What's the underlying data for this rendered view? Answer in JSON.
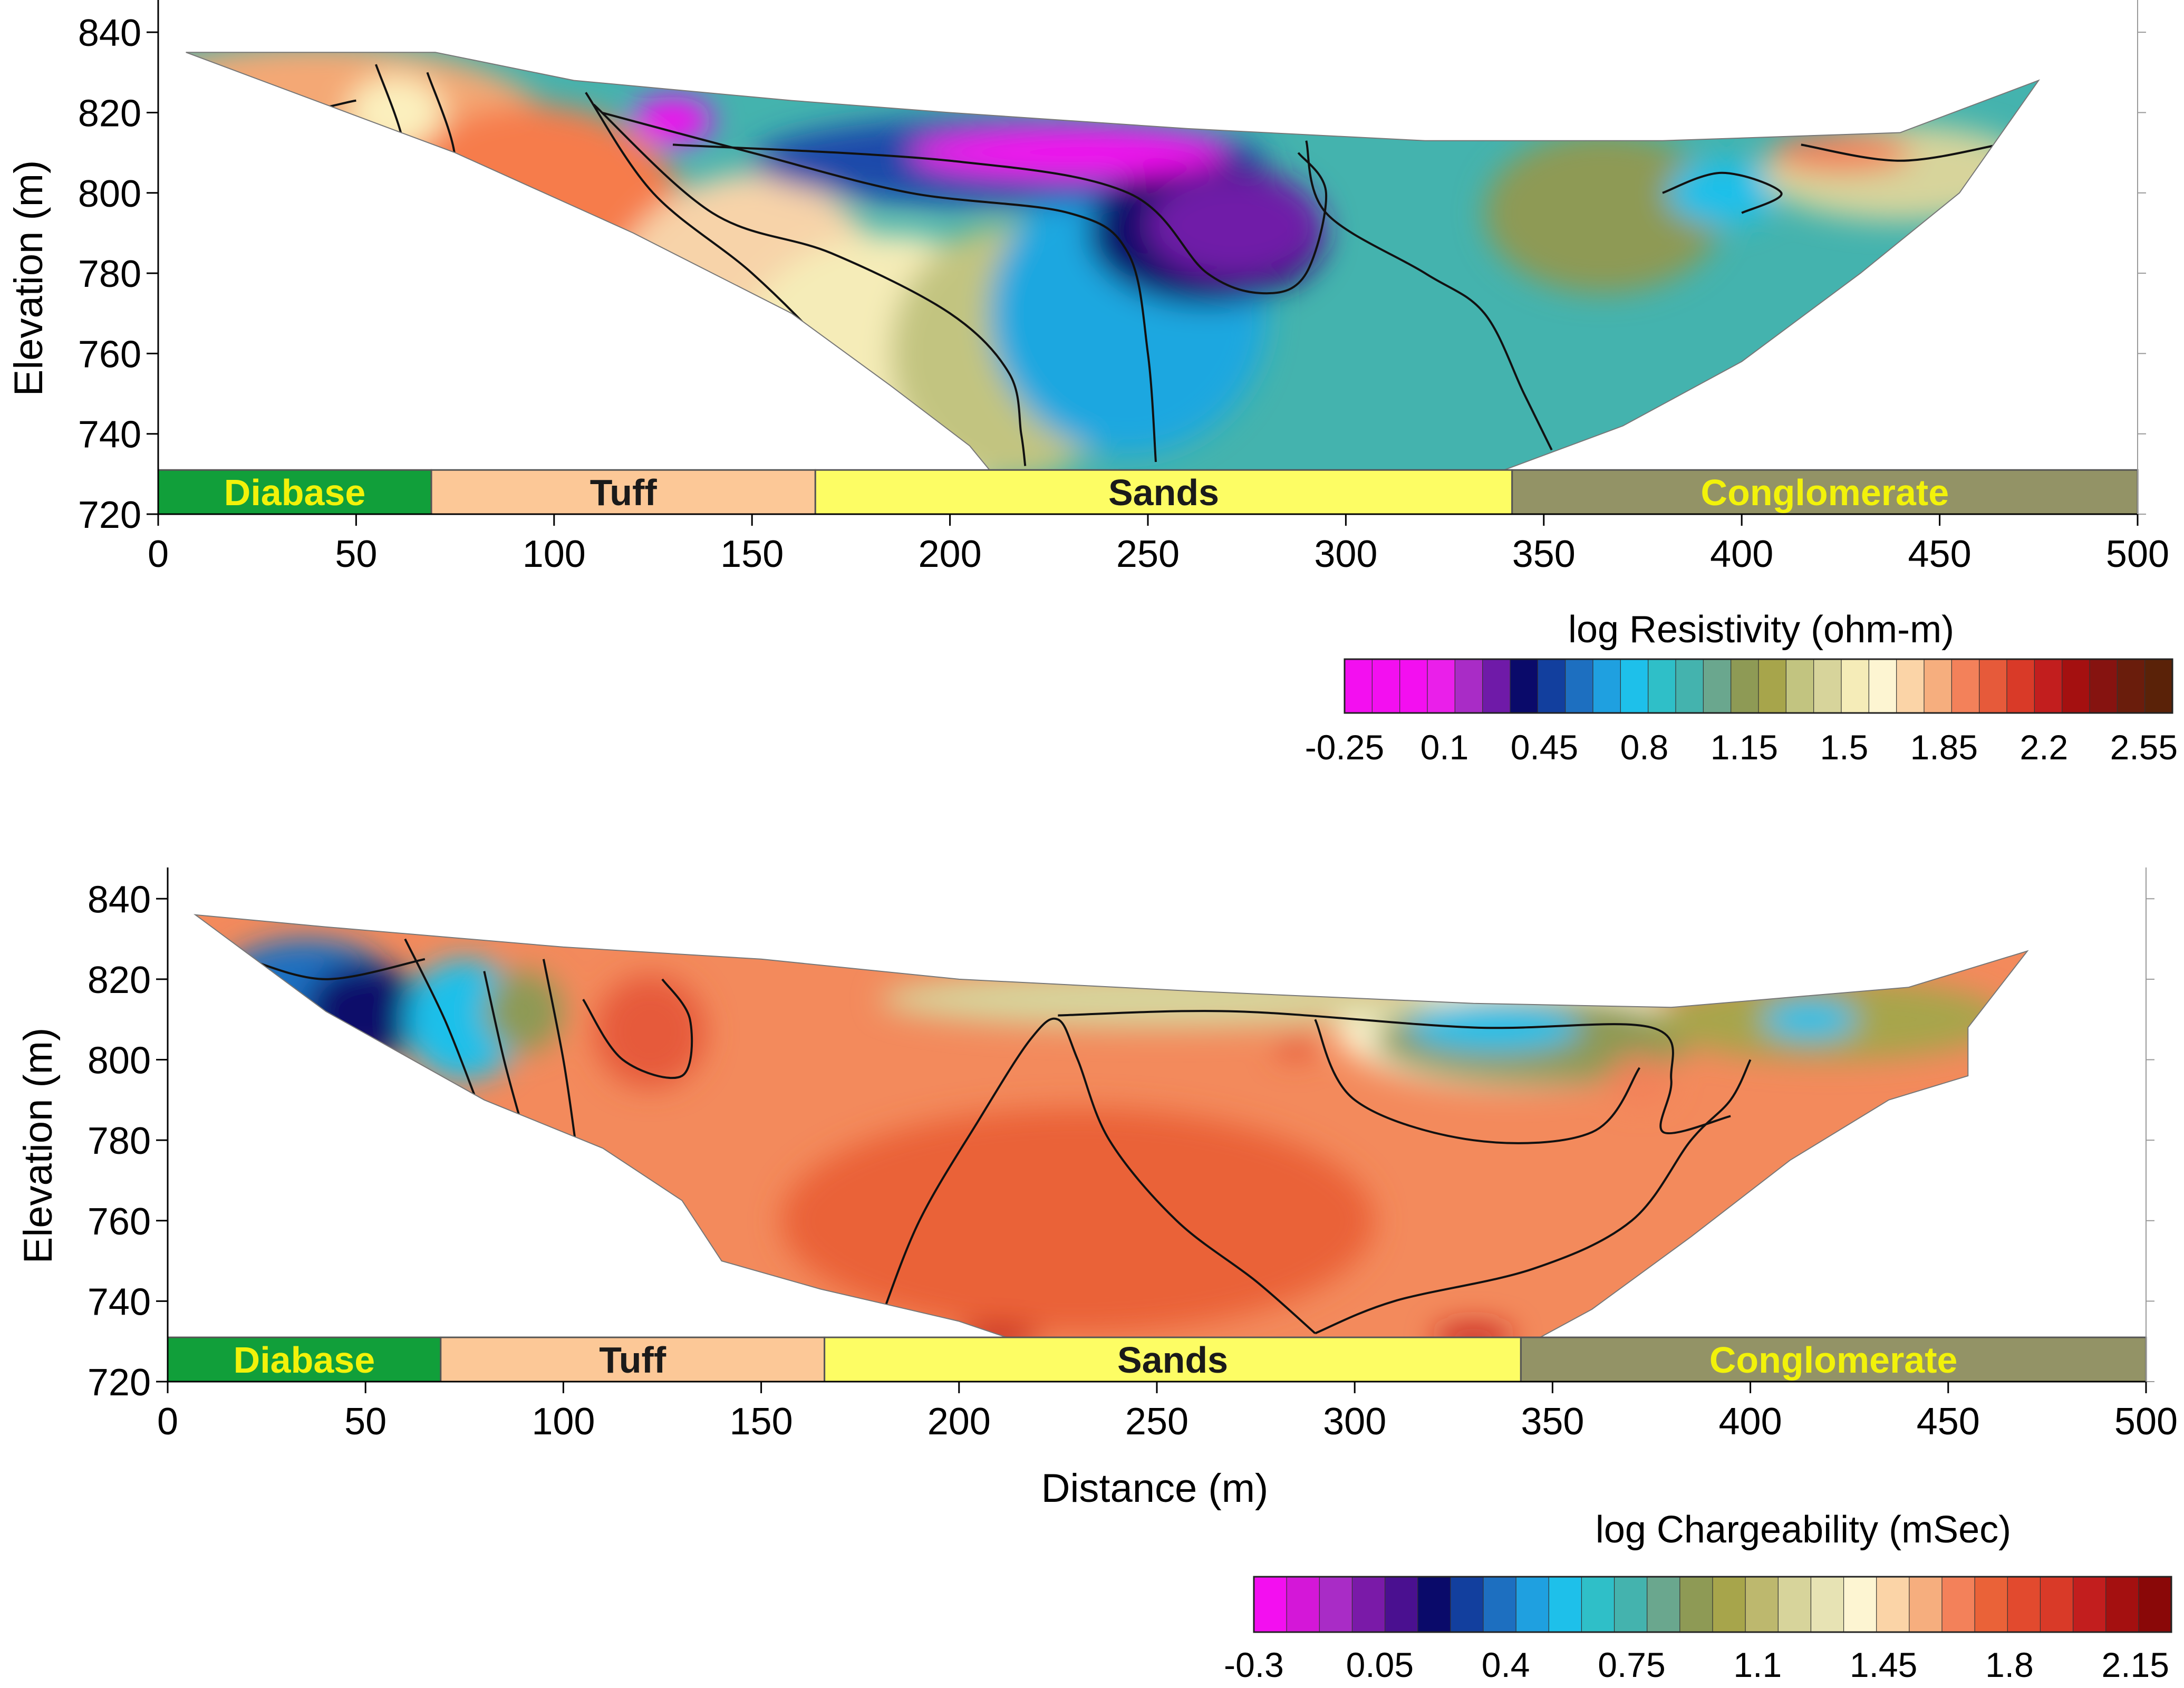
{
  "figure": {
    "x_axis_title": "Distance (m)"
  },
  "chart_data": [
    {
      "type": "heatmap",
      "id": "resistivity",
      "ylabel": "Elevation (m)",
      "xlabel": "",
      "xlim": [
        0,
        500
      ],
      "ylim": [
        720,
        850
      ],
      "x_ticks": [
        0,
        50,
        100,
        150,
        200,
        250,
        300,
        350,
        400,
        450,
        500
      ],
      "y_ticks": [
        720,
        740,
        760,
        780,
        800,
        820,
        840
      ],
      "section_top": [
        [
          7,
          835
        ],
        [
          70,
          835
        ],
        [
          105,
          828
        ],
        [
          160,
          823
        ],
        [
          200,
          820
        ],
        [
          260,
          816
        ],
        [
          320,
          813
        ],
        [
          380,
          813
        ],
        [
          440,
          815
        ],
        [
          475,
          828
        ]
      ],
      "section_bottom": [
        [
          7,
          835
        ],
        [
          75,
          810
        ],
        [
          120,
          790
        ],
        [
          160,
          770
        ],
        [
          185,
          752
        ],
        [
          205,
          737
        ],
        [
          210,
          731
        ],
        [
          340,
          731
        ],
        [
          370,
          742
        ],
        [
          400,
          758
        ],
        [
          430,
          780
        ],
        [
          455,
          800
        ],
        [
          475,
          828
        ]
      ],
      "field_bg": "#44b3ae",
      "bodies": [
        {
          "cx": 40,
          "cy": 815,
          "rx": 60,
          "ry": 22,
          "color": "#f4a875"
        },
        {
          "cx": 95,
          "cy": 790,
          "rx": 40,
          "ry": 32,
          "color": "#f67c4c"
        },
        {
          "cx": 60,
          "cy": 820,
          "rx": 12,
          "ry": 9,
          "color": "#fbf0be"
        },
        {
          "cx": 150,
          "cy": 760,
          "rx": 40,
          "ry": 45,
          "color": "#f7d3a9"
        },
        {
          "cx": 185,
          "cy": 755,
          "rx": 40,
          "ry": 35,
          "color": "#f5ecb8"
        },
        {
          "cx": 215,
          "cy": 760,
          "rx": 30,
          "ry": 32,
          "color": "#c2c480"
        },
        {
          "cx": 245,
          "cy": 770,
          "rx": 35,
          "ry": 35,
          "color": "#1fa7e0"
        },
        {
          "cx": 215,
          "cy": 808,
          "rx": 65,
          "ry": 11,
          "color": "#1f4aaa"
        },
        {
          "cx": 265,
          "cy": 790,
          "rx": 30,
          "ry": 18,
          "color": "#0a0a6a"
        },
        {
          "cx": 272,
          "cy": 792,
          "rx": 22,
          "ry": 13,
          "color": "#6f1aa8"
        },
        {
          "cx": 230,
          "cy": 810,
          "rx": 40,
          "ry": 6,
          "color": "#f30ff0"
        },
        {
          "cx": 130,
          "cy": 818,
          "rx": 10,
          "ry": 6,
          "color": "#f30ff0"
        },
        {
          "cx": 365,
          "cy": 795,
          "rx": 30,
          "ry": 20,
          "color": "#8e9a55"
        },
        {
          "cx": 395,
          "cy": 800,
          "rx": 14,
          "ry": 8,
          "color": "#1ec0ea"
        },
        {
          "cx": 440,
          "cy": 805,
          "rx": 35,
          "ry": 12,
          "color": "#d7d49b"
        },
        {
          "cx": 425,
          "cy": 810,
          "rx": 18,
          "ry": 5,
          "color": "#f3815a"
        }
      ],
      "contours": [
        [
          [
            108,
            825
          ],
          [
            125,
            800
          ],
          [
            150,
            780
          ],
          [
            170,
            760
          ],
          [
            180,
            745
          ],
          [
            192,
            732
          ]
        ],
        [
          [
            110,
            822
          ],
          [
            140,
            795
          ],
          [
            170,
            785
          ],
          [
            200,
            770
          ],
          [
            215,
            755
          ],
          [
            218,
            740
          ],
          [
            219,
            732
          ]
        ],
        [
          [
            112,
            820
          ],
          [
            150,
            810
          ],
          [
            190,
            800
          ],
          [
            230,
            795
          ],
          [
            245,
            785
          ],
          [
            250,
            760
          ],
          [
            252,
            733
          ]
        ],
        [
          [
            130,
            812
          ],
          [
            200,
            808
          ],
          [
            245,
            800
          ],
          [
            265,
            780
          ],
          [
            280,
            775
          ],
          [
            290,
            780
          ],
          [
            295,
            800
          ],
          [
            288,
            810
          ]
        ],
        [
          [
            290,
            813
          ],
          [
            295,
            795
          ],
          [
            320,
            780
          ],
          [
            335,
            770
          ],
          [
            345,
            750
          ],
          [
            352,
            736
          ]
        ],
        [
          [
            55,
            832
          ],
          [
            62,
            812
          ],
          [
            60,
            800
          ],
          [
            68,
            795
          ],
          [
            75,
            808
          ],
          [
            68,
            830
          ]
        ],
        [
          [
            415,
            812
          ],
          [
            440,
            808
          ],
          [
            465,
            812
          ]
        ],
        [
          [
            15,
            828
          ],
          [
            30,
            820
          ],
          [
            50,
            823
          ]
        ],
        [
          [
            380,
            800
          ],
          [
            395,
            805
          ],
          [
            410,
            800
          ],
          [
            400,
            795
          ]
        ]
      ],
      "geology": [
        {
          "label": "Diabase",
          "from": 0,
          "to": 69,
          "fill": "#119f3a",
          "text_color": "#f2f20a"
        },
        {
          "label": "Tuff",
          "from": 69,
          "to": 166,
          "fill": "#fcc897",
          "text_color": "#1a1a1a"
        },
        {
          "label": "Sands",
          "from": 166,
          "to": 342,
          "fill": "#fdfd64",
          "text_color": "#1a1a1a"
        },
        {
          "label": "Conglomerate",
          "from": 342,
          "to": 500,
          "fill": "#939366",
          "text_color": "#f2f20a"
        }
      ],
      "geology_band": [
        720,
        731
      ],
      "colorbar": {
        "title": "log Resistivity (ohm-m)",
        "tick_labels": [
          "-0.25",
          "0.1",
          "0.45",
          "0.8",
          "1.15",
          "1.5",
          "1.85",
          "2.2",
          "2.55"
        ],
        "range": [
          -0.25,
          2.65
        ],
        "stops": [
          "#f30ff0",
          "#f30ff0",
          "#f30ff0",
          "#ea1fea",
          "#a92cc6",
          "#6f1aa8",
          "#0a0a6a",
          "#123f9e",
          "#1d6fc0",
          "#1fa0e0",
          "#1ec0ea",
          "#2fbfc8",
          "#44b3ae",
          "#6aa78e",
          "#8e9a55",
          "#a7a54b",
          "#c2c480",
          "#d7d49b",
          "#f5ecb8",
          "#fdf5d2",
          "#fbd4a7",
          "#f6ae7e",
          "#f3815a",
          "#e65a3a",
          "#d93a28",
          "#c21e1e",
          "#a41010",
          "#861310",
          "#6a1d0c",
          "#5a2208"
        ]
      }
    },
    {
      "type": "heatmap",
      "id": "chargeability",
      "ylabel": "Elevation (m)",
      "xlabel": "Distance (m)",
      "xlim": [
        0,
        500
      ],
      "ylim": [
        720,
        850
      ],
      "x_ticks": [
        0,
        50,
        100,
        150,
        200,
        250,
        300,
        350,
        400,
        450,
        500
      ],
      "y_ticks": [
        720,
        740,
        760,
        780,
        800,
        820,
        840
      ],
      "section_top": [
        [
          7,
          836
        ],
        [
          40,
          833
        ],
        [
          100,
          828
        ],
        [
          150,
          825
        ],
        [
          200,
          820
        ],
        [
          260,
          817
        ],
        [
          330,
          814
        ],
        [
          380,
          813
        ],
        [
          440,
          818
        ],
        [
          470,
          827
        ]
      ],
      "section_bottom": [
        [
          7,
          836
        ],
        [
          40,
          812
        ],
        [
          80,
          790
        ],
        [
          110,
          778
        ],
        [
          130,
          765
        ],
        [
          140,
          750
        ],
        [
          165,
          743
        ],
        [
          200,
          735
        ],
        [
          215,
          730
        ],
        [
          345,
          730
        ],
        [
          360,
          738
        ],
        [
          385,
          756
        ],
        [
          410,
          775
        ],
        [
          435,
          790
        ],
        [
          455,
          796
        ],
        [
          455,
          808
        ],
        [
          470,
          827
        ]
      ],
      "field_bg": "#f38a5c",
      "bodies": [
        {
          "cx": 35,
          "cy": 815,
          "rx": 25,
          "ry": 15,
          "color": "#1d6fc0"
        },
        {
          "cx": 50,
          "cy": 812,
          "rx": 15,
          "ry": 12,
          "color": "#0a0a6a"
        },
        {
          "cx": 75,
          "cy": 810,
          "rx": 15,
          "ry": 15,
          "color": "#1ec0ea"
        },
        {
          "cx": 90,
          "cy": 812,
          "rx": 10,
          "ry": 10,
          "color": "#8e9a55"
        },
        {
          "cx": 122,
          "cy": 807,
          "rx": 14,
          "ry": 14,
          "color": "#e65a3a"
        },
        {
          "cx": 340,
          "cy": 808,
          "rx": 45,
          "ry": 15,
          "color": "#fdf5d2"
        },
        {
          "cx": 345,
          "cy": 805,
          "rx": 40,
          "ry": 11,
          "color": "#8e9a55"
        },
        {
          "cx": 335,
          "cy": 808,
          "rx": 22,
          "ry": 6,
          "color": "#1ec0ea"
        },
        {
          "cx": 250,
          "cy": 815,
          "rx": 70,
          "ry": 7,
          "color": "#d7d49b"
        },
        {
          "cx": 420,
          "cy": 810,
          "rx": 45,
          "ry": 10,
          "color": "#a7a54b"
        },
        {
          "cx": 415,
          "cy": 810,
          "rx": 12,
          "ry": 5,
          "color": "#1ec0ea"
        },
        {
          "cx": 230,
          "cy": 760,
          "rx": 75,
          "ry": 28,
          "color": "#ea6238"
        },
        {
          "cx": 210,
          "cy": 731,
          "rx": 10,
          "ry": 3,
          "color": "#c21e1e"
        },
        {
          "cx": 330,
          "cy": 731,
          "rx": 10,
          "ry": 3,
          "color": "#c21e1e"
        },
        {
          "cx": 372,
          "cy": 795,
          "rx": 8,
          "ry": 6,
          "color": "#f3815a"
        },
        {
          "cx": 285,
          "cy": 803,
          "rx": 5,
          "ry": 3,
          "color": "#e65a3a"
        }
      ],
      "contours": [
        [
          [
            180,
            735
          ],
          [
            190,
            760
          ],
          [
            205,
            785
          ],
          [
            218,
            805
          ],
          [
            225,
            810
          ],
          [
            230,
            800
          ],
          [
            238,
            780
          ],
          [
            255,
            760
          ],
          [
            275,
            745
          ],
          [
            290,
            732
          ]
        ],
        [
          [
            290,
            732
          ],
          [
            310,
            740
          ],
          [
            345,
            748
          ],
          [
            370,
            760
          ],
          [
            385,
            780
          ],
          [
            395,
            790
          ],
          [
            400,
            800
          ]
        ],
        [
          [
            105,
            815
          ],
          [
            115,
            800
          ],
          [
            130,
            796
          ],
          [
            132,
            810
          ],
          [
            125,
            820
          ]
        ],
        [
          [
            225,
            811
          ],
          [
            270,
            812
          ],
          [
            330,
            808
          ],
          [
            375,
            808
          ],
          [
            380,
            795
          ],
          [
            378,
            782
          ],
          [
            395,
            786
          ]
        ],
        [
          [
            290,
            810
          ],
          [
            300,
            790
          ],
          [
            330,
            780
          ],
          [
            360,
            782
          ],
          [
            372,
            798
          ]
        ],
        [
          [
            80,
            822
          ],
          [
            85,
            800
          ],
          [
            90,
            782
          ]
        ],
        [
          [
            95,
            825
          ],
          [
            100,
            800
          ],
          [
            103,
            780
          ]
        ],
        [
          [
            60,
            830
          ],
          [
            70,
            810
          ],
          [
            78,
            790
          ]
        ],
        [
          [
            20,
            825
          ],
          [
            40,
            820
          ],
          [
            65,
            825
          ]
        ]
      ],
      "geology": [
        {
          "label": "Diabase",
          "from": 0,
          "to": 69,
          "fill": "#119f3a",
          "text_color": "#f2f20a"
        },
        {
          "label": "Tuff",
          "from": 69,
          "to": 166,
          "fill": "#fcc897",
          "text_color": "#1a1a1a"
        },
        {
          "label": "Sands",
          "from": 166,
          "to": 342,
          "fill": "#fdfd64",
          "text_color": "#1a1a1a"
        },
        {
          "label": "Conglomerate",
          "from": 342,
          "to": 500,
          "fill": "#939366",
          "text_color": "#f2f20a"
        }
      ],
      "geology_band": [
        720,
        731
      ],
      "colorbar": {
        "title": "log Chargeability (mSec)",
        "tick_labels": [
          "-0.3",
          "0.05",
          "0.4",
          "0.75",
          "1.1",
          "1.45",
          "1.8",
          "2.15"
        ],
        "range": [
          -0.3,
          2.25
        ],
        "stops": [
          "#f30ff0",
          "#d417d8",
          "#a92cc6",
          "#7a1aa8",
          "#4a1090",
          "#0a0a6a",
          "#123f9e",
          "#1d6fc0",
          "#1fa0e0",
          "#1ec0ea",
          "#2fbfc8",
          "#44b3ae",
          "#6aa78e",
          "#8e9a55",
          "#a7a54b",
          "#bdb86e",
          "#d7d49b",
          "#e7e3b4",
          "#fdf5d2",
          "#fbd4a7",
          "#f6ae7e",
          "#f3815a",
          "#ea6238",
          "#e24a2e",
          "#d93a28",
          "#c21e1e",
          "#a41010",
          "#8a0808"
        ]
      }
    }
  ]
}
